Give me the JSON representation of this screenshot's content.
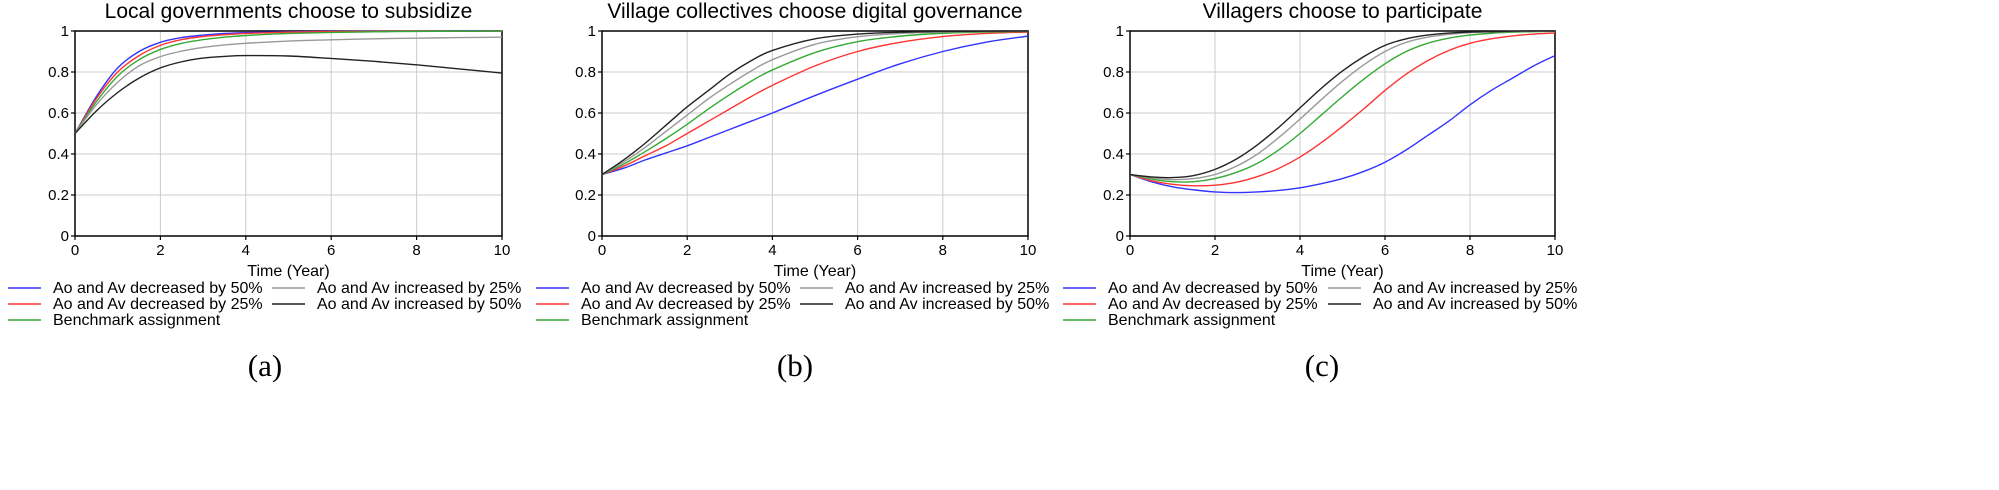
{
  "chart_data": [
    {
      "type": "line",
      "title": "Local governments choose to subsidize",
      "xlabel": "Time (Year)",
      "ylabel": "",
      "xlim": [
        0,
        10
      ],
      "ylim": [
        0,
        1
      ],
      "xticks": [
        "0",
        "2",
        "4",
        "6",
        "8",
        "10"
      ],
      "yticks": [
        "0",
        "0.2",
        "0.4",
        "0.6",
        "0.8",
        "1"
      ],
      "grid": true,
      "legend_position": "bottom",
      "panel_label": "(a)",
      "x": [
        0,
        0.5,
        1,
        1.5,
        2,
        2.5,
        3,
        3.5,
        4,
        5,
        6,
        7,
        8,
        9,
        10
      ],
      "series": [
        {
          "name": "Ao and Av decreased by 50%",
          "color": "#3333ff",
          "values": [
            0.5,
            0.68,
            0.82,
            0.9,
            0.945,
            0.968,
            0.98,
            0.988,
            0.992,
            0.996,
            0.998,
            0.999,
            0.999,
            1.0,
            1.0
          ]
        },
        {
          "name": "Ao and Av decreased by 25%",
          "color": "#ff3333",
          "values": [
            0.5,
            0.67,
            0.8,
            0.88,
            0.93,
            0.958,
            0.973,
            0.982,
            0.988,
            0.994,
            0.997,
            0.998,
            0.999,
            0.999,
            1.0
          ]
        },
        {
          "name": "Benchmark assignment",
          "color": "#33aa33",
          "values": [
            0.5,
            0.655,
            0.78,
            0.86,
            0.91,
            0.94,
            0.958,
            0.97,
            0.978,
            0.988,
            0.993,
            0.996,
            0.998,
            0.999,
            0.999
          ]
        },
        {
          "name": "Ao and Av increased by 25%",
          "color": "#999999",
          "values": [
            0.5,
            0.64,
            0.75,
            0.83,
            0.875,
            0.902,
            0.92,
            0.932,
            0.94,
            0.951,
            0.957,
            0.962,
            0.965,
            0.968,
            0.97
          ]
        },
        {
          "name": "Ao and Av increased by 50%",
          "color": "#222222",
          "values": [
            0.5,
            0.61,
            0.7,
            0.77,
            0.82,
            0.85,
            0.868,
            0.876,
            0.88,
            0.878,
            0.866,
            0.852,
            0.835,
            0.815,
            0.795
          ]
        }
      ]
    },
    {
      "type": "line",
      "title": "Village collectives choose digital governance",
      "xlabel": "Time (Year)",
      "ylabel": "",
      "xlim": [
        0,
        10
      ],
      "ylim": [
        0,
        1
      ],
      "xticks": [
        "0",
        "2",
        "4",
        "6",
        "8",
        "10"
      ],
      "yticks": [
        "0",
        "0.2",
        "0.4",
        "0.6",
        "0.8",
        "1"
      ],
      "grid": true,
      "legend_position": "bottom",
      "panel_label": "(b)",
      "x": [
        0,
        0.5,
        1,
        1.5,
        2,
        2.5,
        3,
        3.5,
        4,
        5,
        6,
        7,
        8,
        9,
        10
      ],
      "series": [
        {
          "name": "Ao and Av decreased by 50%",
          "color": "#3333ff",
          "values": [
            0.3,
            0.33,
            0.37,
            0.405,
            0.44,
            0.48,
            0.52,
            0.56,
            0.6,
            0.685,
            0.765,
            0.84,
            0.9,
            0.945,
            0.975
          ]
        },
        {
          "name": "Ao and Av decreased by 25%",
          "color": "#ff3333",
          "values": [
            0.3,
            0.34,
            0.39,
            0.44,
            0.5,
            0.56,
            0.62,
            0.68,
            0.735,
            0.83,
            0.9,
            0.945,
            0.973,
            0.988,
            0.995
          ]
        },
        {
          "name": "Benchmark assignment",
          "color": "#33aa33",
          "values": [
            0.3,
            0.35,
            0.41,
            0.475,
            0.545,
            0.62,
            0.69,
            0.755,
            0.81,
            0.895,
            0.948,
            0.975,
            0.989,
            0.995,
            0.998
          ]
        },
        {
          "name": "Ao and Av increased by 25%",
          "color": "#999999",
          "values": [
            0.3,
            0.36,
            0.43,
            0.51,
            0.59,
            0.67,
            0.74,
            0.805,
            0.86,
            0.935,
            0.972,
            0.988,
            0.995,
            0.998,
            0.999
          ]
        },
        {
          "name": "Ao and Av increased by 50%",
          "color": "#222222",
          "values": [
            0.3,
            0.37,
            0.45,
            0.54,
            0.63,
            0.71,
            0.79,
            0.855,
            0.905,
            0.962,
            0.985,
            0.994,
            0.998,
            0.999,
            1.0
          ]
        }
      ]
    },
    {
      "type": "line",
      "title": "Villagers choose to participate",
      "xlabel": "Time (Year)",
      "ylabel": "",
      "xlim": [
        0,
        10
      ],
      "ylim": [
        0,
        1
      ],
      "xticks": [
        "0",
        "2",
        "4",
        "6",
        "8",
        "10"
      ],
      "yticks": [
        "0",
        "0.2",
        "0.4",
        "0.6",
        "0.8",
        "1"
      ],
      "grid": true,
      "legend_position": "bottom",
      "panel_label": "(c)",
      "x": [
        0,
        0.5,
        1,
        1.5,
        2,
        2.5,
        3,
        3.5,
        4,
        4.5,
        5,
        5.5,
        6,
        6.5,
        7,
        7.5,
        8,
        8.5,
        9,
        9.5,
        10
      ],
      "series": [
        {
          "name": "Ao and Av decreased by 50%",
          "color": "#3333ff",
          "values": [
            0.3,
            0.265,
            0.24,
            0.225,
            0.215,
            0.212,
            0.215,
            0.222,
            0.235,
            0.255,
            0.28,
            0.315,
            0.36,
            0.42,
            0.49,
            0.56,
            0.64,
            0.71,
            0.77,
            0.83,
            0.88
          ]
        },
        {
          "name": "Ao and Av decreased by 25%",
          "color": "#ff3333",
          "values": [
            0.3,
            0.27,
            0.252,
            0.245,
            0.248,
            0.262,
            0.29,
            0.33,
            0.385,
            0.455,
            0.535,
            0.62,
            0.71,
            0.79,
            0.855,
            0.905,
            0.94,
            0.962,
            0.976,
            0.985,
            0.99
          ]
        },
        {
          "name": "Benchmark assignment",
          "color": "#33aa33",
          "values": [
            0.3,
            0.278,
            0.265,
            0.265,
            0.28,
            0.31,
            0.355,
            0.42,
            0.5,
            0.59,
            0.68,
            0.765,
            0.84,
            0.9,
            0.94,
            0.965,
            0.98,
            0.989,
            0.994,
            0.997,
            0.998
          ]
        },
        {
          "name": "Ao and Av increased by 25%",
          "color": "#999999",
          "values": [
            0.3,
            0.283,
            0.275,
            0.28,
            0.3,
            0.34,
            0.4,
            0.48,
            0.57,
            0.665,
            0.755,
            0.835,
            0.9,
            0.945,
            0.97,
            0.984,
            0.992,
            0.996,
            0.998,
            0.999,
            0.999
          ]
        },
        {
          "name": "Ao and Av increased by 50%",
          "color": "#222222",
          "values": [
            0.3,
            0.288,
            0.285,
            0.295,
            0.325,
            0.375,
            0.445,
            0.53,
            0.625,
            0.72,
            0.805,
            0.875,
            0.93,
            0.962,
            0.98,
            0.99,
            0.995,
            0.997,
            0.999,
            1.0,
            1.0
          ]
        }
      ]
    }
  ]
}
